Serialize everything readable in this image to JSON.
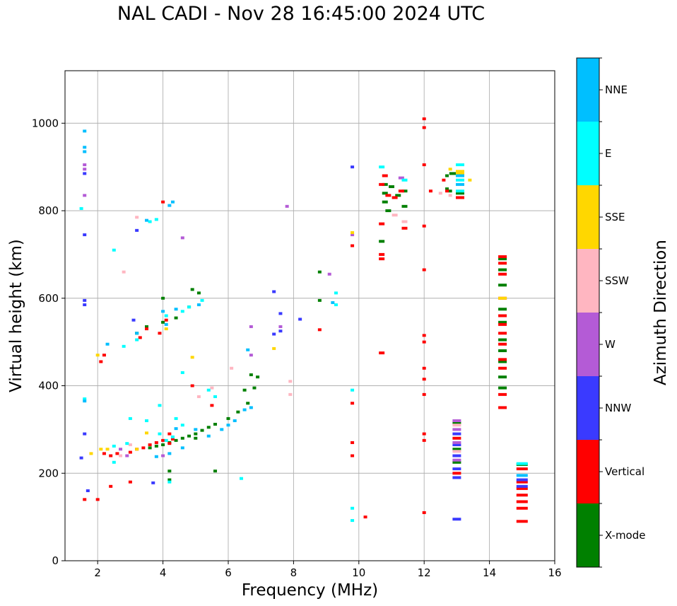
{
  "chart_data": {
    "type": "scatter",
    "title": "NAL CADI - Nov 28 16:45:00 2024 UTC",
    "xlabel": "Frequency (MHz)",
    "ylabel": "Virtual height (km)",
    "xlim": [
      1,
      16
    ],
    "ylim": [
      0,
      1120
    ],
    "xticks": [
      2,
      4,
      6,
      8,
      10,
      12,
      14,
      16
    ],
    "yticks": [
      0,
      200,
      400,
      600,
      800,
      1000
    ],
    "grid": true,
    "colorbar": {
      "label": "Azimuth Direction",
      "categories": [
        {
          "name": "X-mode",
          "color": "#008000"
        },
        {
          "name": "Vertical",
          "color": "#ff0000"
        },
        {
          "name": "NNW",
          "color": "#3a3aff"
        },
        {
          "name": "W",
          "color": "#b45bd6"
        },
        {
          "name": "SSW",
          "color": "#ffb6c1"
        },
        {
          "name": "SSE",
          "color": "#ffd700"
        },
        {
          "name": "E",
          "color": "#00ffff"
        },
        {
          "name": "NNE",
          "color": "#00bfff"
        }
      ]
    },
    "series": [
      {
        "name": "X-mode",
        "points": [
          [
            3.6,
            258
          ],
          [
            3.8,
            262
          ],
          [
            4.0,
            265
          ],
          [
            4.2,
            270
          ],
          [
            4.4,
            275
          ],
          [
            4.6,
            280
          ],
          [
            4.8,
            285
          ],
          [
            5.0,
            290
          ],
          [
            5.2,
            298
          ],
          [
            5.4,
            305
          ],
          [
            5.6,
            312
          ],
          [
            6.0,
            325
          ],
          [
            6.3,
            340
          ],
          [
            6.6,
            360
          ],
          [
            6.8,
            395
          ],
          [
            6.9,
            420
          ],
          [
            6.7,
            425
          ],
          [
            6.5,
            390
          ],
          [
            5.0,
            280
          ],
          [
            4.2,
            205
          ],
          [
            4.2,
            185
          ],
          [
            3.2,
            520
          ],
          [
            3.5,
            535
          ],
          [
            4.0,
            545
          ],
          [
            4.4,
            555
          ],
          [
            4.8,
            580
          ],
          [
            4.9,
            620
          ],
          [
            5.1,
            612
          ],
          [
            4.0,
            600
          ],
          [
            10.8,
            860
          ],
          [
            10.8,
            840
          ],
          [
            10.8,
            820
          ],
          [
            10.9,
            800
          ],
          [
            11.0,
            855
          ],
          [
            11.2,
            835
          ],
          [
            11.4,
            845
          ],
          [
            11.4,
            810
          ],
          [
            12.7,
            850
          ],
          [
            12.8,
            845
          ],
          [
            12.7,
            880
          ],
          [
            12.9,
            885
          ],
          [
            13.1,
            840
          ],
          [
            10.7,
            730
          ],
          [
            14.4,
            690
          ],
          [
            14.4,
            665
          ],
          [
            14.4,
            630
          ],
          [
            14.4,
            575
          ],
          [
            14.4,
            545
          ],
          [
            14.4,
            505
          ],
          [
            14.4,
            480
          ],
          [
            14.4,
            455
          ],
          [
            14.4,
            420
          ],
          [
            14.4,
            395
          ],
          [
            15.0,
            220
          ],
          [
            8.8,
            595
          ],
          [
            8.8,
            660
          ],
          [
            5.6,
            205
          ],
          [
            13.0,
            225
          ],
          [
            13.0,
            255
          ],
          [
            13.0,
            315
          ]
        ]
      },
      {
        "name": "Vertical",
        "points": [
          [
            1.6,
            140
          ],
          [
            2.0,
            140
          ],
          [
            2.2,
            245
          ],
          [
            2.4,
            240
          ],
          [
            2.6,
            245
          ],
          [
            3.0,
            248
          ],
          [
            3.2,
            255
          ],
          [
            3.4,
            258
          ],
          [
            3.6,
            265
          ],
          [
            3.8,
            270
          ],
          [
            4.0,
            275
          ],
          [
            4.2,
            268
          ],
          [
            4.3,
            278
          ],
          [
            4.2,
            290
          ],
          [
            3.0,
            180
          ],
          [
            2.4,
            170
          ],
          [
            2.1,
            455
          ],
          [
            2.2,
            470
          ],
          [
            3.3,
            510
          ],
          [
            3.5,
            530
          ],
          [
            3.9,
            520
          ],
          [
            4.1,
            550
          ],
          [
            4.9,
            400
          ],
          [
            5.5,
            355
          ],
          [
            9.8,
            720
          ],
          [
            9.8,
            360
          ],
          [
            9.8,
            270
          ],
          [
            9.8,
            240
          ],
          [
            10.2,
            100
          ],
          [
            10.7,
            700
          ],
          [
            10.7,
            690
          ],
          [
            10.7,
            860
          ],
          [
            10.7,
            770
          ],
          [
            10.8,
            880
          ],
          [
            10.7,
            475
          ],
          [
            10.9,
            835
          ],
          [
            11.1,
            830
          ],
          [
            11.3,
            845
          ],
          [
            11.4,
            760
          ],
          [
            12.0,
            1010
          ],
          [
            12.0,
            990
          ],
          [
            12.0,
            905
          ],
          [
            12.0,
            765
          ],
          [
            12.0,
            665
          ],
          [
            12.0,
            515
          ],
          [
            12.0,
            500
          ],
          [
            12.0,
            440
          ],
          [
            12.0,
            415
          ],
          [
            12.0,
            380
          ],
          [
            12.0,
            290
          ],
          [
            12.0,
            275
          ],
          [
            12.0,
            110
          ],
          [
            12.2,
            845
          ],
          [
            12.6,
            870
          ],
          [
            12.7,
            845
          ],
          [
            13.1,
            830
          ],
          [
            8.8,
            528
          ],
          [
            14.4,
            695
          ],
          [
            14.4,
            680
          ],
          [
            14.4,
            655
          ],
          [
            14.4,
            600
          ],
          [
            14.4,
            560
          ],
          [
            14.4,
            540
          ],
          [
            14.4,
            520
          ],
          [
            14.4,
            495
          ],
          [
            14.4,
            460
          ],
          [
            14.4,
            440
          ],
          [
            14.4,
            380
          ],
          [
            14.4,
            350
          ],
          [
            15.0,
            180
          ],
          [
            15.0,
            165
          ],
          [
            15.0,
            150
          ],
          [
            15.0,
            135
          ],
          [
            15.0,
            120
          ],
          [
            15.0,
            90
          ],
          [
            15.0,
            210
          ],
          [
            13.0,
            200
          ],
          [
            13.0,
            280
          ],
          [
            4.0,
            820
          ]
        ]
      },
      {
        "name": "NNW",
        "points": [
          [
            1.6,
            885
          ],
          [
            1.6,
            745
          ],
          [
            1.6,
            595
          ],
          [
            1.6,
            585
          ],
          [
            1.6,
            290
          ],
          [
            1.7,
            160
          ],
          [
            3.2,
            755
          ],
          [
            3.7,
            178
          ],
          [
            7.4,
            615
          ],
          [
            7.4,
            518
          ],
          [
            7.6,
            565
          ],
          [
            7.6,
            525
          ],
          [
            8.2,
            552
          ],
          [
            9.8,
            900
          ],
          [
            13.0,
            95
          ],
          [
            15.0,
            185
          ],
          [
            15.0,
            170
          ],
          [
            13.0,
            190
          ],
          [
            13.0,
            210
          ],
          [
            13.0,
            240
          ],
          [
            13.0,
            265
          ],
          [
            13.0,
            290
          ],
          [
            3.1,
            550
          ],
          [
            1.5,
            235
          ]
        ]
      },
      {
        "name": "W",
        "points": [
          [
            1.6,
            905
          ],
          [
            1.6,
            895
          ],
          [
            1.6,
            835
          ],
          [
            7.8,
            810
          ],
          [
            6.7,
            535
          ],
          [
            6.7,
            470
          ],
          [
            7.6,
            535
          ],
          [
            9.1,
            655
          ],
          [
            13.0,
            300
          ],
          [
            13.0,
            320
          ],
          [
            13.0,
            230
          ],
          [
            13.0,
            270
          ],
          [
            2.7,
            255
          ],
          [
            2.9,
            240
          ],
          [
            4.0,
            240
          ],
          [
            4.6,
            738
          ],
          [
            9.8,
            745
          ],
          [
            11.3,
            875
          ]
        ]
      },
      {
        "name": "SSW",
        "points": [
          [
            3.2,
            785
          ],
          [
            11.4,
            775
          ],
          [
            11.1,
            790
          ],
          [
            7.9,
            410
          ],
          [
            7.9,
            380
          ],
          [
            6.1,
            440
          ],
          [
            5.5,
            395
          ],
          [
            5.1,
            375
          ],
          [
            3.0,
            265
          ],
          [
            2.7,
            240
          ],
          [
            2.8,
            660
          ],
          [
            12.5,
            840
          ],
          [
            12.8,
            835
          ],
          [
            13.0,
            250
          ],
          [
            13.0,
            310
          ]
        ]
      },
      {
        "name": "SSE",
        "points": [
          [
            2.0,
            470
          ],
          [
            2.1,
            255
          ],
          [
            2.3,
            255
          ],
          [
            3.5,
            292
          ],
          [
            3.2,
            255
          ],
          [
            4.9,
            465
          ],
          [
            7.4,
            485
          ],
          [
            9.8,
            750
          ],
          [
            12.8,
            895
          ],
          [
            13.1,
            890
          ],
          [
            13.1,
            885
          ],
          [
            13.4,
            870
          ],
          [
            14.4,
            600
          ],
          [
            4.1,
            530
          ],
          [
            1.8,
            245
          ]
        ]
      },
      {
        "name": "E",
        "points": [
          [
            1.6,
            370
          ],
          [
            1.5,
            805
          ],
          [
            2.5,
            710
          ],
          [
            2.8,
            490
          ],
          [
            3.2,
            505
          ],
          [
            3.6,
            775
          ],
          [
            3.8,
            780
          ],
          [
            4.1,
            560
          ],
          [
            4.6,
            570
          ],
          [
            4.8,
            580
          ],
          [
            5.2,
            595
          ],
          [
            5.4,
            390
          ],
          [
            5.6,
            375
          ],
          [
            4.6,
            430
          ],
          [
            4.4,
            325
          ],
          [
            3.9,
            355
          ],
          [
            4.6,
            310
          ],
          [
            4.1,
            275
          ],
          [
            4.3,
            283
          ],
          [
            3.9,
            290
          ],
          [
            3.5,
            320
          ],
          [
            3.0,
            325
          ],
          [
            2.9,
            268
          ],
          [
            2.5,
            262
          ],
          [
            9.8,
            390
          ],
          [
            9.8,
            120
          ],
          [
            9.8,
            92
          ],
          [
            9.3,
            585
          ],
          [
            9.3,
            612
          ],
          [
            10.7,
            900
          ],
          [
            11.4,
            870
          ],
          [
            13.1,
            905
          ],
          [
            13.1,
            870
          ],
          [
            13.1,
            845
          ],
          [
            15.0,
            222
          ],
          [
            4.2,
            180
          ],
          [
            6.4,
            188
          ],
          [
            2.5,
            225
          ]
        ]
      },
      {
        "name": "NNE",
        "points": [
          [
            1.6,
            982
          ],
          [
            1.6,
            945
          ],
          [
            1.6,
            935
          ],
          [
            4.2,
            812
          ],
          [
            4.3,
            820
          ],
          [
            3.5,
            778
          ],
          [
            4.0,
            570
          ],
          [
            4.1,
            540
          ],
          [
            4.4,
            575
          ],
          [
            5.1,
            585
          ],
          [
            6.0,
            310
          ],
          [
            6.2,
            320
          ],
          [
            6.5,
            345
          ],
          [
            6.7,
            350
          ],
          [
            5.8,
            300
          ],
          [
            5.4,
            285
          ],
          [
            5.0,
            300
          ],
          [
            4.6,
            258
          ],
          [
            4.2,
            245
          ],
          [
            3.8,
            238
          ],
          [
            4.4,
            302
          ],
          [
            6.6,
            482
          ],
          [
            9.2,
            590
          ],
          [
            13.1,
            860
          ],
          [
            13.1,
            880
          ],
          [
            15.0,
            195
          ],
          [
            1.6,
            365
          ],
          [
            3.2,
            520
          ],
          [
            2.3,
            495
          ]
        ]
      }
    ]
  }
}
